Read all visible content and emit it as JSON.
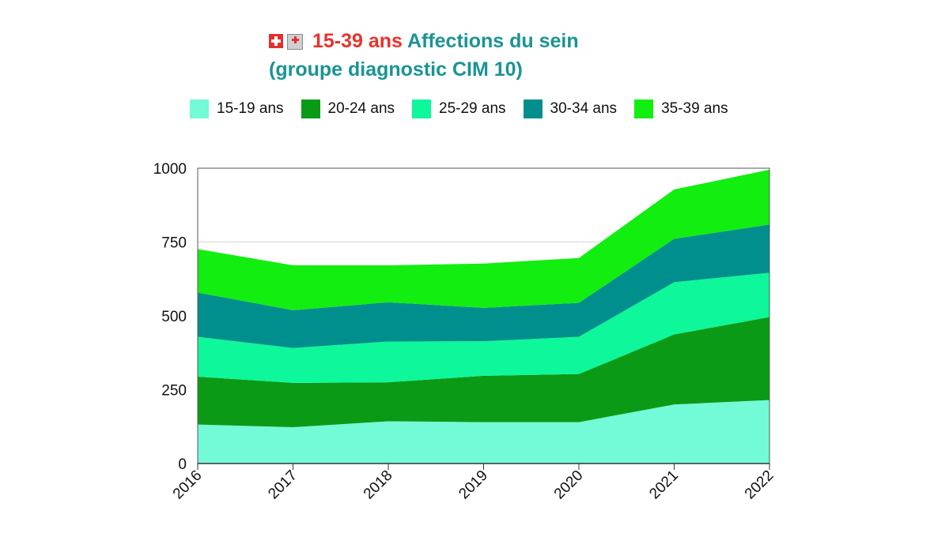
{
  "title": {
    "icon_flag": "swiss-flag-icon",
    "icon_hospital": "hospital-icon",
    "age_range": "15-39 ans",
    "topic": "Affections du sein",
    "subtitle": "(groupe diagnostic CIM 10)",
    "color_age": "#e8322c",
    "color_topic": "#1b9394"
  },
  "chart_data": {
    "type": "area",
    "stacked": true,
    "title": "15-39 ans Affections du sein (groupe diagnostic CIM 10)",
    "xlabel": "",
    "ylabel": "",
    "categories": [
      "2016",
      "2017",
      "2018",
      "2019",
      "2020",
      "2021",
      "2022"
    ],
    "ylim": [
      0,
      1000
    ],
    "yticks": [
      0,
      250,
      500,
      750,
      1000
    ],
    "grid": true,
    "legend_position": "top",
    "series": [
      {
        "name": "15-19 ans",
        "color": "#73fad6",
        "values": [
          132,
          123,
          143,
          140,
          140,
          200,
          215
        ]
      },
      {
        "name": "20-24 ans",
        "color": "#0b9a16",
        "values": [
          162,
          150,
          132,
          157,
          163,
          237,
          281
        ]
      },
      {
        "name": "25-29 ans",
        "color": "#0ef79a",
        "values": [
          135,
          118,
          138,
          117,
          126,
          177,
          150
        ]
      },
      {
        "name": "30-34 ans",
        "color": "#008f8c",
        "values": [
          150,
          128,
          133,
          113,
          115,
          147,
          163
        ]
      },
      {
        "name": "35-39 ans",
        "color": "#12ee10",
        "values": [
          147,
          152,
          125,
          150,
          152,
          167,
          186
        ]
      }
    ]
  }
}
